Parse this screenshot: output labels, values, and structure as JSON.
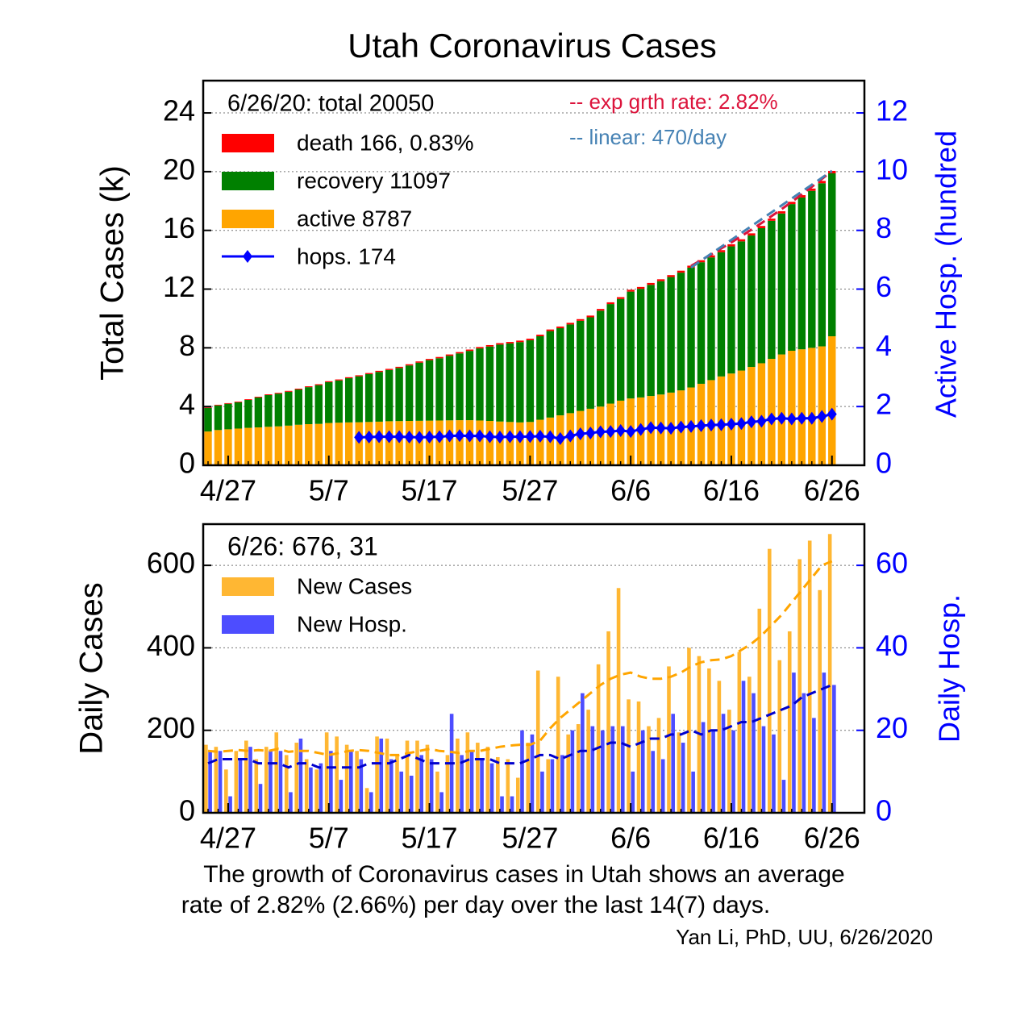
{
  "chart_data": [
    {
      "type": "bar",
      "stacked": true,
      "title": "Utah Coronavirus Cases",
      "ylabel": "Total Cases (k)",
      "y2label": "Active Hosp. (hundred",
      "annotation": "6/26/20: total 20050",
      "categories": [
        null,
        null,
        "4/27",
        null,
        null,
        null,
        null,
        null,
        null,
        null,
        null,
        null,
        "5/7",
        null,
        null,
        null,
        null,
        null,
        null,
        null,
        null,
        null,
        "5/17",
        null,
        null,
        null,
        null,
        null,
        null,
        null,
        null,
        null,
        "5/27",
        null,
        null,
        null,
        null,
        null,
        null,
        null,
        null,
        null,
        "6/6",
        null,
        null,
        null,
        null,
        null,
        null,
        null,
        null,
        null,
        "6/16",
        null,
        null,
        null,
        null,
        null,
        null,
        null,
        null,
        null,
        "6/26"
      ],
      "series": [
        {
          "name": "active 8787",
          "color": "#ffa500",
          "values": [
            2.3,
            2.4,
            2.45,
            2.5,
            2.55,
            2.58,
            2.62,
            2.65,
            2.7,
            2.76,
            2.8,
            2.82,
            2.88,
            2.9,
            2.92,
            2.93,
            2.95,
            2.97,
            3.0,
            3.01,
            3.02,
            3.03,
            3.04,
            3.05,
            3.06,
            3.07,
            3.07,
            3.05,
            3.02,
            2.98,
            2.95,
            2.92,
            2.95,
            3.1,
            3.25,
            3.4,
            3.55,
            3.7,
            3.85,
            4.0,
            4.2,
            4.4,
            4.55,
            4.62,
            4.72,
            4.82,
            4.95,
            5.1,
            5.3,
            5.55,
            5.8,
            6.05,
            6.25,
            6.45,
            6.7,
            6.95,
            7.25,
            7.55,
            7.8,
            7.9,
            8.0,
            8.1,
            8.787
          ]
        },
        {
          "name": "recovery 11097",
          "color": "#008000",
          "values": [
            1.61,
            1.68,
            1.74,
            1.79,
            1.9,
            2.04,
            2.16,
            2.23,
            2.31,
            2.4,
            2.52,
            2.64,
            2.78,
            2.88,
            3.01,
            3.13,
            3.26,
            3.39,
            3.49,
            3.62,
            3.78,
            3.96,
            4.12,
            4.24,
            4.4,
            4.55,
            4.72,
            4.91,
            5.07,
            5.24,
            5.35,
            5.47,
            5.57,
            5.69,
            5.89,
            5.94,
            6.04,
            6.14,
            6.23,
            6.53,
            6.78,
            6.93,
            7.28,
            7.4,
            7.57,
            7.72,
            7.87,
            8.02,
            8.16,
            8.28,
            8.36,
            8.46,
            8.66,
            8.8,
            8.95,
            9.2,
            9.4,
            9.6,
            9.99,
            10.34,
            10.69,
            11.11,
            11.097
          ]
        },
        {
          "name": "death 166, 0.83%",
          "color": "#ff0000",
          "values": [
            0.04,
            0.042,
            0.044,
            0.046,
            0.048,
            0.05,
            0.052,
            0.054,
            0.056,
            0.058,
            0.06,
            0.062,
            0.064,
            0.066,
            0.068,
            0.07,
            0.072,
            0.074,
            0.076,
            0.078,
            0.08,
            0.082,
            0.084,
            0.086,
            0.088,
            0.09,
            0.092,
            0.094,
            0.096,
            0.098,
            0.1,
            0.102,
            0.104,
            0.106,
            0.108,
            0.11,
            0.112,
            0.114,
            0.116,
            0.118,
            0.12,
            0.122,
            0.124,
            0.126,
            0.128,
            0.13,
            0.132,
            0.134,
            0.136,
            0.138,
            0.14,
            0.142,
            0.144,
            0.146,
            0.148,
            0.15,
            0.152,
            0.154,
            0.156,
            0.158,
            0.16,
            0.162,
            0.166
          ]
        },
        {
          "name": "hops. 174",
          "type": "line",
          "marker": "diamond",
          "color": "#0000ff",
          "axis": "y2",
          "values": [
            null,
            null,
            null,
            null,
            null,
            null,
            null,
            null,
            null,
            null,
            null,
            null,
            null,
            null,
            null,
            0.95,
            0.96,
            0.97,
            0.97,
            0.97,
            0.96,
            0.95,
            0.96,
            0.97,
            1,
            1.01,
            1,
            1,
            0.97,
            0.96,
            0.97,
            0.97,
            0.98,
            0.99,
            0.97,
            0.91,
            1,
            1.07,
            1.1,
            1.14,
            1.15,
            1.18,
            1.15,
            1.22,
            1.28,
            1.27,
            1.26,
            1.3,
            1.32,
            1.35,
            1.37,
            1.38,
            1.4,
            1.42,
            1.48,
            1.5,
            1.58,
            1.6,
            1.58,
            1.6,
            1.6,
            1.66,
            1.74
          ]
        },
        {
          "name": "-- exp grth rate: 2.82%",
          "type": "line",
          "dashed": true,
          "color": "#dc143c",
          "values": [
            null,
            null,
            null,
            null,
            null,
            null,
            null,
            null,
            null,
            null,
            null,
            null,
            null,
            null,
            null,
            null,
            null,
            null,
            null,
            null,
            null,
            null,
            null,
            null,
            null,
            null,
            null,
            null,
            null,
            null,
            null,
            null,
            null,
            null,
            null,
            null,
            null,
            null,
            null,
            null,
            null,
            null,
            null,
            null,
            null,
            null,
            null,
            null,
            13.58,
            13.97,
            14.36,
            14.77,
            15.18,
            15.61,
            16.05,
            16.5,
            16.97,
            17.45,
            17.94,
            18.45,
            18.97,
            19.5,
            20.05
          ]
        },
        {
          "name": "-- linear: 470/day",
          "type": "line",
          "dashed": true,
          "color": "#4682b4",
          "values": [
            null,
            null,
            null,
            null,
            null,
            null,
            null,
            null,
            null,
            null,
            null,
            null,
            null,
            null,
            null,
            null,
            null,
            null,
            null,
            null,
            null,
            null,
            null,
            null,
            null,
            null,
            null,
            null,
            null,
            null,
            null,
            null,
            null,
            null,
            null,
            null,
            null,
            null,
            null,
            null,
            null,
            null,
            null,
            null,
            null,
            null,
            null,
            null,
            13.47,
            13.94,
            14.41,
            14.88,
            15.35,
            15.82,
            16.29,
            16.76,
            17.23,
            17.7,
            18.17,
            18.64,
            19.11,
            19.58,
            20.05
          ]
        }
      ],
      "ylim": [
        0,
        26.2
      ],
      "yticks": [
        0,
        4,
        8,
        12,
        16,
        20,
        24
      ],
      "y2lim": [
        0,
        13.1
      ],
      "y2ticks": [
        0,
        2,
        4,
        6,
        8,
        10,
        12
      ],
      "grid": true
    },
    {
      "type": "bar",
      "stacked": false,
      "ylabel": "Daily Cases",
      "y2label": "Daily Hosp.",
      "annotation": "6/26: 676, 31",
      "categories": [
        null,
        null,
        "4/27",
        null,
        null,
        null,
        null,
        null,
        null,
        null,
        null,
        null,
        "5/7",
        null,
        null,
        null,
        null,
        null,
        null,
        null,
        null,
        null,
        "5/17",
        null,
        null,
        null,
        null,
        null,
        null,
        null,
        null,
        null,
        "5/27",
        null,
        null,
        null,
        null,
        null,
        null,
        null,
        null,
        null,
        "6/6",
        null,
        null,
        null,
        null,
        null,
        null,
        null,
        null,
        null,
        "6/16",
        null,
        null,
        null,
        null,
        null,
        null,
        null,
        null,
        null,
        "6/26"
      ],
      "series": [
        {
          "name": "New Cases",
          "color": "#ffb733",
          "values": [
            165,
            160,
            105,
            150,
            175,
            130,
            160,
            195,
            140,
            170,
            130,
            105,
            195,
            185,
            165,
            150,
            60,
            185,
            180,
            140,
            175,
            175,
            165,
            100,
            140,
            180,
            195,
            170,
            160,
            135,
            130,
            85,
            170,
            345,
            130,
            330,
            190,
            215,
            250,
            360,
            440,
            545,
            275,
            270,
            210,
            230,
            355,
            195,
            400,
            380,
            350,
            320,
            250,
            390,
            330,
            495,
            640,
            370,
            440,
            615,
            660,
            540,
            676
          ]
        },
        {
          "name": "New Hosp.",
          "color": "#4d4dff",
          "axis": "y2",
          "values": [
            15,
            15,
            4,
            13,
            16,
            7,
            15,
            15,
            5,
            18,
            11,
            12,
            15,
            8,
            15,
            13,
            5,
            18,
            13,
            10,
            9,
            14,
            13,
            5,
            24,
            14,
            15,
            13,
            12,
            4,
            4,
            20,
            19,
            10,
            13,
            14,
            20,
            29,
            21,
            20,
            21,
            21,
            10,
            20,
            15,
            13,
            24,
            17,
            10,
            22,
            20,
            24,
            20,
            32,
            29,
            21,
            19,
            8,
            34,
            29,
            23,
            34,
            31
          ]
        },
        {
          "type": "line",
          "dashed": true,
          "color": "#ffa500",
          "values": [
            150,
            148,
            150,
            152,
            150,
            152,
            150,
            155,
            148,
            150,
            150,
            145,
            140,
            145,
            150,
            152,
            150,
            145,
            140,
            140,
            145,
            150,
            155,
            150,
            148,
            145,
            150,
            150,
            155,
            160,
            163,
            165,
            165,
            175,
            205,
            230,
            250,
            270,
            290,
            310,
            325,
            335,
            340,
            330,
            325,
            325,
            330,
            340,
            355,
            365,
            370,
            372,
            380,
            395,
            410,
            430,
            455,
            480,
            510,
            540,
            570,
            600,
            610
          ]
        },
        {
          "type": "line",
          "dashed": true,
          "color": "#0000cd",
          "axis": "y2",
          "values": [
            12,
            13,
            13,
            13,
            13,
            12,
            12,
            12,
            11,
            12,
            12,
            11,
            11,
            11,
            11,
            11,
            12,
            12,
            12,
            13,
            14,
            13,
            12,
            12,
            12,
            12,
            13,
            13,
            13,
            12,
            12,
            12,
            13,
            14,
            14,
            13,
            14,
            15,
            15,
            16,
            17,
            17,
            16,
            17,
            18,
            18,
            19,
            19,
            20,
            19,
            20,
            20,
            21,
            22,
            22,
            23,
            24,
            25,
            26,
            28,
            29,
            30,
            31
          ]
        }
      ],
      "ylim": [
        0,
        700
      ],
      "yticks": [
        0,
        200,
        400,
        600
      ],
      "y2lim": [
        0,
        70
      ],
      "y2ticks": [
        0,
        20,
        40,
        60
      ],
      "grid": true
    }
  ],
  "caption": [
    "The growth of Coronavirus cases in Utah shows an average",
    "rate of 2.82% (2.66%) per day over the last 14(7) days."
  ],
  "credit": "Yan Li, PhD, UU, 6/26/2020"
}
